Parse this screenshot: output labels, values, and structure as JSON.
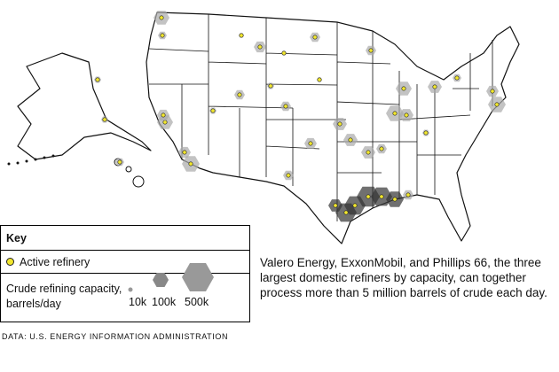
{
  "key": {
    "title": "Key",
    "active_label": "Active refinery",
    "capacity_label": "Crude refining capacity, barrels/day",
    "sizes": [
      "10k",
      "100k",
      "500k"
    ]
  },
  "annotation": "Valero Energy, ExxonMobil, and Phillips 66, the three largest domestic refiners by capacity, can together process more than 5 million barrels of crude each day.",
  "source": "DATA: U.S. ENERGY INFORMATION ADMINISTRATION"
}
